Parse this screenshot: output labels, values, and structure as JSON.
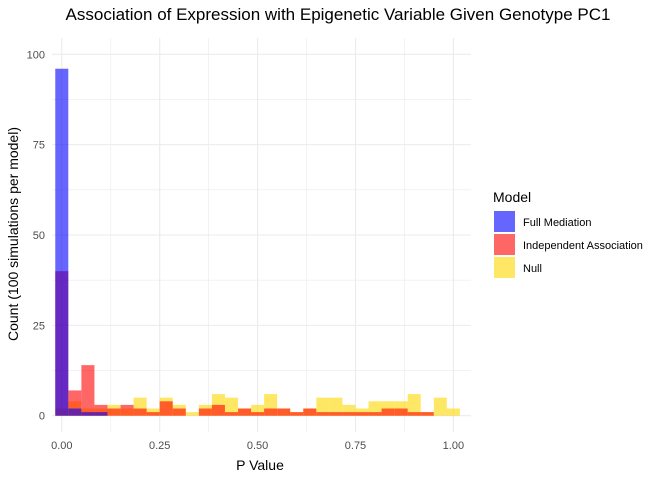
{
  "chart_data": {
    "type": "bar",
    "title": "Association of Expression with Epigenetic Variable Given Genotype PC1",
    "xlabel": "P Value",
    "ylabel": "Count (100 simulations per model)",
    "xlim": [
      -0.025,
      1.045
    ],
    "ylim": [
      0,
      100
    ],
    "x_ticks": [
      "0.00",
      "0.25",
      "0.50",
      "0.75",
      "1.00"
    ],
    "y_ticks": [
      "0",
      "25",
      "50",
      "75",
      "100"
    ],
    "grid": true,
    "legend": {
      "title": "Model",
      "placement": "right"
    },
    "bin_width": 0.0333,
    "bin_centers": [
      0.0,
      0.0333,
      0.0667,
      0.1,
      0.1333,
      0.1667,
      0.2,
      0.2333,
      0.2667,
      0.3,
      0.3333,
      0.3667,
      0.4,
      0.4333,
      0.4667,
      0.5,
      0.5333,
      0.5667,
      0.6,
      0.6333,
      0.6667,
      0.7,
      0.7333,
      0.7667,
      0.8,
      0.8333,
      0.8667,
      0.9,
      0.9333,
      0.9667,
      1.0
    ],
    "series": [
      {
        "name": "Full Mediation",
        "color": "#0000FF",
        "values": [
          96,
          2,
          1,
          1,
          0,
          0,
          0,
          0,
          0,
          0,
          0,
          0,
          0,
          0,
          0,
          0,
          0,
          0,
          0,
          0,
          0,
          0,
          0,
          0,
          0,
          0,
          0,
          0,
          0,
          0,
          0
        ]
      },
      {
        "name": "Independent Association",
        "color": "#FF0000",
        "values": [
          40,
          7,
          14,
          3,
          2,
          3,
          2,
          1,
          4,
          2,
          0,
          2,
          3,
          1,
          2,
          1,
          2,
          2,
          1,
          2,
          1,
          1,
          1,
          1,
          1,
          2,
          2,
          1,
          1,
          0,
          0
        ]
      },
      {
        "name": "Null",
        "color": "#FFD700",
        "values": [
          2,
          4,
          2,
          2,
          3,
          2,
          5,
          2,
          5,
          3,
          1,
          3,
          6,
          5,
          2,
          3,
          6,
          2,
          1,
          2,
          5,
          5,
          3,
          2,
          4,
          4,
          4,
          6,
          1,
          5,
          2
        ]
      }
    ]
  }
}
